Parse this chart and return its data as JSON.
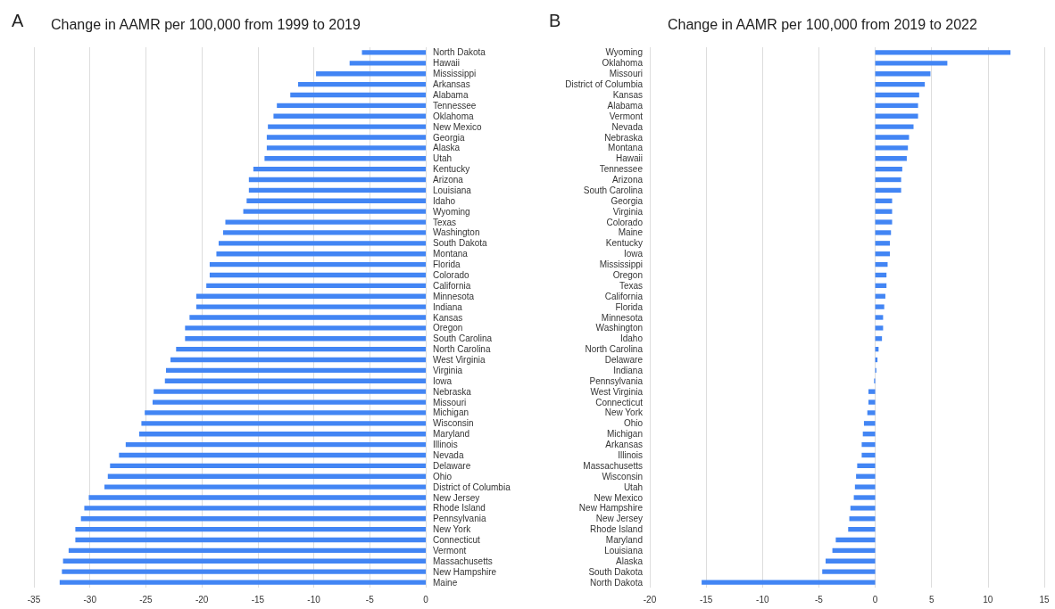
{
  "chart_data": [
    {
      "type": "bar",
      "orientation": "horizontal",
      "title": "Change in AAMR per 100,000 from 1999 to 2019",
      "annotations": [
        "A"
      ],
      "categories": [
        "North Dakota",
        "Hawaii",
        "Mississippi",
        "Arkansas",
        "Alabama",
        "Tennessee",
        "Oklahoma",
        "New Mexico",
        "Georgia",
        "Alaska",
        "Utah",
        "Kentucky",
        "Arizona",
        "Louisiana",
        "Idaho",
        "Wyoming",
        "Texas",
        "Washington",
        "South Dakota",
        "Montana",
        "Florida",
        "Colorado",
        "California",
        "Minnesota",
        "Indiana",
        "Kansas",
        "Oregon",
        "South Carolina",
        "North Carolina",
        "West Virginia",
        "Virginia",
        "Iowa",
        "Nebraska",
        "Missouri",
        "Michigan",
        "Wisconsin",
        "Maryland",
        "Illinois",
        "Nevada",
        "Delaware",
        "Ohio",
        "District of Columbia",
        "New Jersey",
        "Rhode Island",
        "Pennsylvania",
        "New York",
        "Connecticut",
        "Vermont",
        "Massachusetts",
        "New Hampshire",
        "Maine"
      ],
      "values": [
        -5.7,
        -6.8,
        -9.8,
        -11.4,
        -12.1,
        -13.3,
        -13.6,
        -14.1,
        -14.2,
        -14.2,
        -14.4,
        -15.4,
        -15.8,
        -15.8,
        -16.0,
        -16.3,
        -17.9,
        -18.1,
        -18.5,
        -18.7,
        -19.3,
        -19.3,
        -19.6,
        -20.5,
        -20.5,
        -21.1,
        -21.5,
        -21.5,
        -22.3,
        -22.8,
        -23.2,
        -23.3,
        -24.3,
        -24.4,
        -25.1,
        -25.4,
        -25.6,
        -26.8,
        -27.4,
        -28.2,
        -28.4,
        -28.7,
        -30.1,
        -30.5,
        -30.8,
        -31.3,
        -31.3,
        -31.9,
        -32.4,
        -32.5,
        -32.7
      ],
      "color": "#4285f4",
      "xlim": [
        -35,
        0
      ],
      "xticks": [
        -35,
        -30,
        -25,
        -20,
        -15,
        -10,
        -5,
        0
      ],
      "grid": "x"
    },
    {
      "type": "bar",
      "orientation": "horizontal",
      "title": "Change in AAMR per 100,000 from 2019 to 2022",
      "annotations": [
        "B"
      ],
      "categories": [
        "Wyoming",
        "Oklahoma",
        "Missouri",
        "District of Columbia",
        "Kansas",
        "Alabama",
        "Vermont",
        "Nevada",
        "Nebraska",
        "Montana",
        "Hawaii",
        "Tennessee",
        "Arizona",
        "South Carolina",
        "Georgia",
        "Virginia",
        "Colorado",
        "Maine",
        "Kentucky",
        "Iowa",
        "Mississippi",
        "Oregon",
        "Texas",
        "California",
        "Florida",
        "Minnesota",
        "Washington",
        "Idaho",
        "North Carolina",
        "Delaware",
        "Indiana",
        "Pennsylvania",
        "West Virginia",
        "Connecticut",
        "New York",
        "Ohio",
        "Michigan",
        "Arkansas",
        "Illinois",
        "Massachusetts",
        "Wisconsin",
        "Utah",
        "New Mexico",
        "New Hampshire",
        "New Jersey",
        "Rhode Island",
        "Maryland",
        "Louisiana",
        "Alaska",
        "South Dakota",
        "North Dakota"
      ],
      "values": [
        12.0,
        6.4,
        4.9,
        4.4,
        3.9,
        3.8,
        3.8,
        3.4,
        3.0,
        2.9,
        2.8,
        2.4,
        2.3,
        2.3,
        1.5,
        1.5,
        1.5,
        1.4,
        1.3,
        1.3,
        1.1,
        1.0,
        1.0,
        0.9,
        0.8,
        0.7,
        0.7,
        0.6,
        0.3,
        0.2,
        0.1,
        -0.1,
        -0.6,
        -0.6,
        -0.7,
        -1.0,
        -1.1,
        -1.2,
        -1.2,
        -1.6,
        -1.7,
        -1.8,
        -1.9,
        -2.2,
        -2.3,
        -2.4,
        -3.5,
        -3.8,
        -4.4,
        -4.7,
        -15.4
      ],
      "color": "#4285f4",
      "xlim": [
        -20,
        15
      ],
      "xticks": [
        -20,
        -15,
        -10,
        -5,
        0,
        5,
        10,
        15
      ],
      "grid": "x"
    }
  ]
}
